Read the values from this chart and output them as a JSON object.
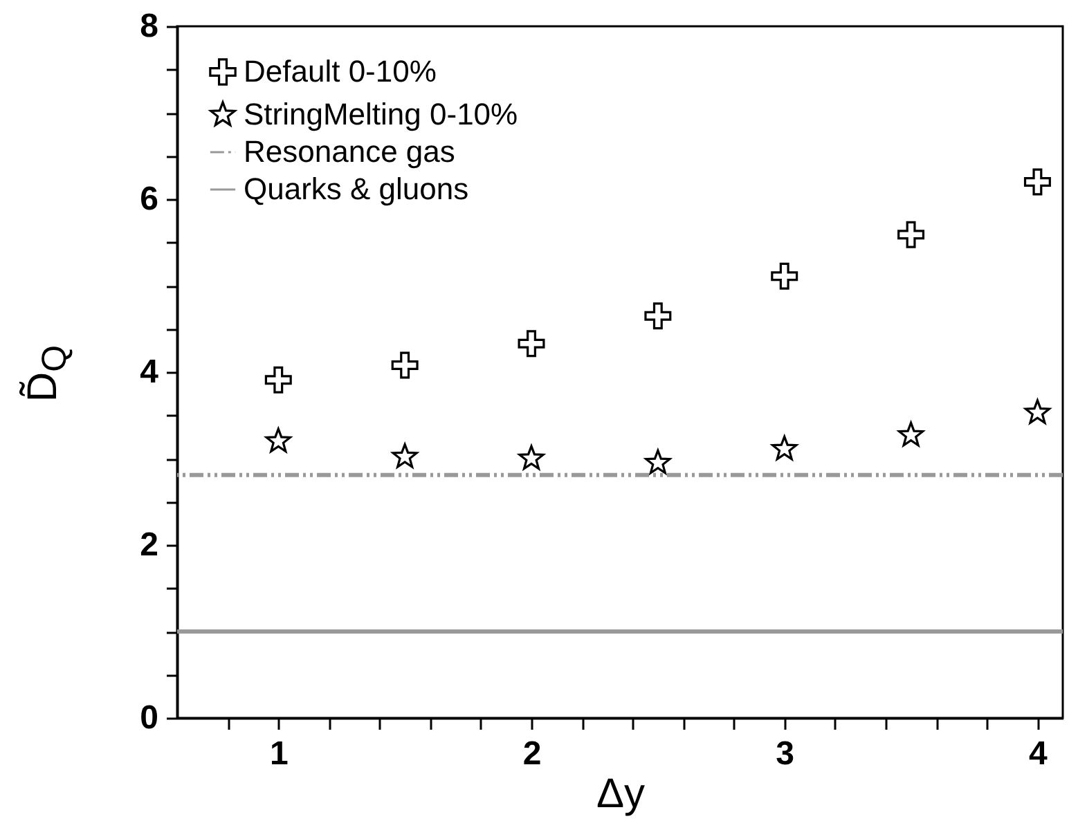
{
  "chart_data": {
    "type": "scatter",
    "xlabel": "Δy",
    "ylabel": "D̃$_{Q}$",
    "x": [
      1,
      1.5,
      2,
      2.5,
      3,
      3.5,
      4
    ],
    "series": [
      {
        "name": "Default 0-10%",
        "color": "#000000",
        "marker": "cross",
        "values": [
          3.91,
          4.08,
          4.33,
          4.65,
          5.11,
          5.59,
          6.2
        ]
      },
      {
        "name": "StringMelting 0-10%",
        "color": "#000000",
        "marker": "star",
        "values": [
          3.2,
          3.02,
          3.0,
          2.95,
          3.11,
          3.27,
          3.53
        ]
      }
    ],
    "ref_lines": [
      {
        "axis": "y",
        "value": 2.81,
        "label": "Resonance gas",
        "color": "#999999",
        "line_style": "dashed"
      },
      {
        "axis": "y",
        "value": 1.0,
        "label": "Quarks & gluons",
        "color": "#999999",
        "line_style": "solid"
      }
    ],
    "xlim": [
      0.6,
      4.1
    ],
    "xticks": [
      {
        "value": 0.8,
        "label": null
      },
      1,
      {
        "value": 1.2,
        "label": null
      },
      {
        "value": 1.4,
        "label": null
      },
      {
        "value": 1.6,
        "label": null
      },
      {
        "value": 1.8,
        "label": null
      },
      2,
      {
        "value": 2.2,
        "label": null
      },
      {
        "value": 2.4,
        "label": null
      },
      {
        "value": 2.6,
        "label": null
      },
      {
        "value": 2.8,
        "label": null
      },
      3,
      {
        "value": 3.2,
        "label": null
      },
      {
        "value": 3.4,
        "label": null
      },
      {
        "value": 3.6,
        "label": null
      },
      {
        "value": 3.8,
        "label": null
      },
      4
    ],
    "ylim": [
      0,
      8
    ],
    "yticks": [
      0,
      {
        "value": 0.5,
        "label": null
      },
      {
        "value": 1,
        "label": null
      },
      {
        "value": 1.5,
        "label": null
      },
      2,
      {
        "value": 2.5,
        "label": null
      },
      {
        "value": 3,
        "label": null
      },
      {
        "value": 3.5,
        "label": null
      },
      4,
      {
        "value": 4.5,
        "label": null
      },
      {
        "value": 5,
        "label": null
      },
      {
        "value": 5.5,
        "label": null
      },
      6,
      {
        "value": 6.5,
        "label": null
      },
      {
        "value": 7,
        "label": null
      },
      {
        "value": 7.5,
        "label": null
      },
      8
    ],
    "grid": false,
    "legend": "top left"
  }
}
